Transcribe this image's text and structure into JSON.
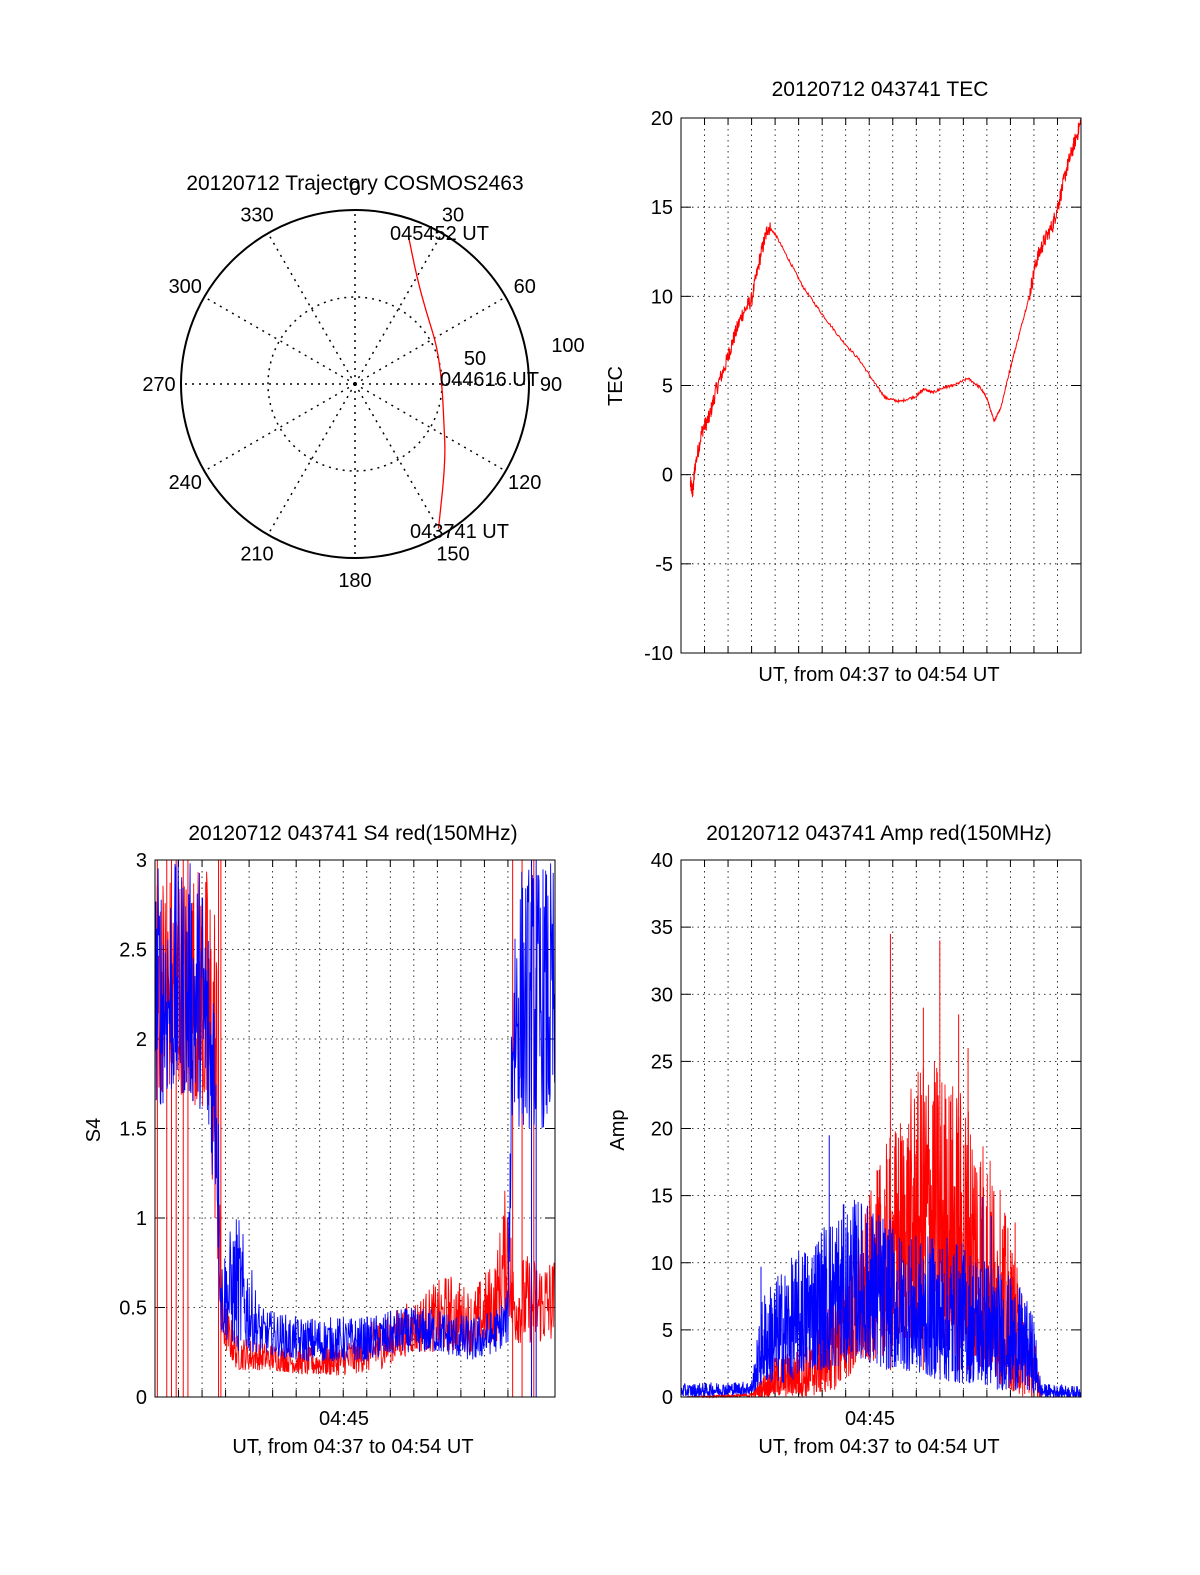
{
  "chart_data": [
    {
      "type": "polar",
      "title": "20120712 Trajectory COSMOS2463",
      "angle_labels": [
        "0",
        "30",
        "60",
        "90",
        "120",
        "150",
        "180",
        "210",
        "240",
        "270",
        "300",
        "330"
      ],
      "radius_labels": [
        "50",
        "100"
      ],
      "radius_range": [
        0,
        100
      ],
      "grid": true,
      "trajectory": {
        "color": "#ff0000",
        "points": [
          {
            "azimuth": 20,
            "radius": 90
          },
          {
            "azimuth": 30,
            "radius": 71
          },
          {
            "azimuth": 45,
            "radius": 58
          },
          {
            "azimuth": 65,
            "radius": 52
          },
          {
            "azimuth": 90,
            "radius": 50
          },
          {
            "azimuth": 112,
            "radius": 55
          },
          {
            "azimuth": 130,
            "radius": 68
          },
          {
            "azimuth": 150,
            "radius": 96
          }
        ]
      },
      "annotations": [
        "045452 UT",
        "044616 UT",
        "043741 UT"
      ]
    },
    {
      "type": "line",
      "title": "20120712 043741 TEC",
      "xlabel": "UT, from 04:37 to 04:54 UT",
      "ylabel": "TEC",
      "xlim": [
        0,
        17
      ],
      "ylim": [
        -10,
        20
      ],
      "yticks": [
        "-10",
        "-5",
        "0",
        "5",
        "10",
        "15",
        "20"
      ],
      "grid": true,
      "series": [
        {
          "color": "#ff0000",
          "points": [
            [
              0.4,
              -0.5
            ],
            [
              0.5,
              -1
            ],
            [
              0.6,
              0.5
            ],
            [
              0.9,
              2.5
            ],
            [
              1.2,
              3.2
            ],
            [
              1.5,
              4.8
            ],
            [
              1.9,
              6.2
            ],
            [
              2.2,
              7.5
            ],
            [
              2.6,
              9.0
            ],
            [
              3.0,
              9.8
            ],
            [
              3.4,
              12.4
            ],
            [
              3.7,
              13.9
            ],
            [
              4.0,
              13.5
            ],
            [
              4.6,
              12.0
            ],
            [
              5.2,
              10.5
            ],
            [
              6.0,
              9.0
            ],
            [
              6.8,
              7.6
            ],
            [
              7.6,
              6.4
            ],
            [
              8.3,
              5.0
            ],
            [
              8.7,
              4.3
            ],
            [
              9.3,
              4.1
            ],
            [
              10.0,
              4.4
            ],
            [
              10.3,
              4.8
            ],
            [
              10.7,
              4.6
            ],
            [
              11.2,
              4.9
            ],
            [
              11.6,
              5.0
            ],
            [
              12.2,
              5.4
            ],
            [
              12.7,
              4.9
            ],
            [
              13.0,
              4.3
            ],
            [
              13.3,
              3.0
            ],
            [
              13.6,
              3.8
            ],
            [
              14.0,
              6.0
            ],
            [
              14.4,
              8.0
            ],
            [
              14.8,
              10.0
            ],
            [
              15.1,
              12.0
            ],
            [
              15.4,
              13.0
            ],
            [
              15.8,
              14.0
            ],
            [
              16.1,
              15.5
            ],
            [
              16.4,
              17.2
            ],
            [
              16.7,
              18.5
            ],
            [
              17.0,
              19.8
            ]
          ]
        }
      ]
    },
    {
      "type": "line",
      "title": "20120712 043741 S4 red(150MHz)",
      "xlabel": "UT, from 04:37 to 04:54 UT",
      "ylabel": "S4",
      "xlim": [
        0,
        17
      ],
      "ylim": [
        0,
        3
      ],
      "xticks": [
        {
          "value": 8,
          "label": "04:45"
        }
      ],
      "yticks": [
        "0",
        "0.5",
        "1",
        "1.5",
        "2",
        "2.5",
        "3"
      ],
      "grid": true,
      "series": [
        {
          "color": "#ff0000",
          "envelope": [
            [
              0.0,
              1.7,
              3
            ],
            [
              1.0,
              1.7,
              3
            ],
            [
              2.0,
              1.6,
              3
            ],
            [
              2.6,
              0.9,
              3
            ],
            [
              2.8,
              0.3,
              0.6
            ],
            [
              3.5,
              0.15,
              0.35
            ],
            [
              5.0,
              0.15,
              0.3
            ],
            [
              6.5,
              0.12,
              0.28
            ],
            [
              8.0,
              0.12,
              0.3
            ],
            [
              9.5,
              0.15,
              0.45
            ],
            [
              11.0,
              0.25,
              0.55
            ],
            [
              12.5,
              0.25,
              0.7
            ],
            [
              13.5,
              0.25,
              0.6
            ],
            [
              14.5,
              0.3,
              0.8
            ],
            [
              15.0,
              0.5,
              1.3
            ],
            [
              15.2,
              0.3,
              0.8
            ]
          ],
          "spikes": [
            0.1,
            0.5,
            0.7,
            0.9,
            1.2,
            1.4,
            2.7,
            2.8,
            15.2,
            15.6,
            16.1
          ]
        },
        {
          "color": "#0000ff",
          "envelope": [
            [
              0.0,
              1.6,
              3
            ],
            [
              1.0,
              1.7,
              3
            ],
            [
              2.0,
              1.6,
              3
            ],
            [
              2.6,
              1.1,
              2.5
            ],
            [
              2.8,
              0.35,
              0.8
            ],
            [
              3.5,
              0.25,
              1.05
            ],
            [
              4.5,
              0.25,
              0.5
            ],
            [
              6.0,
              0.2,
              0.45
            ],
            [
              7.5,
              0.2,
              0.45
            ],
            [
              9.0,
              0.2,
              0.45
            ],
            [
              10.5,
              0.25,
              0.5
            ],
            [
              12.0,
              0.25,
              0.5
            ],
            [
              13.5,
              0.2,
              0.45
            ],
            [
              14.5,
              0.25,
              0.5
            ],
            [
              15.0,
              0.3,
              0.6
            ],
            [
              15.2,
              1.5,
              3
            ],
            [
              17.0,
              1.5,
              3
            ]
          ],
          "spikes": [
            16.0,
            16.2
          ]
        }
      ]
    },
    {
      "type": "line",
      "title": "20120712 043741 Amp red(150MHz)",
      "xlabel": "UT, from 04:37 to 04:54 UT",
      "ylabel": "Amp",
      "xlim": [
        0,
        17
      ],
      "ylim": [
        0,
        40
      ],
      "xticks": [
        {
          "value": 8,
          "label": "04:45"
        }
      ],
      "yticks": [
        "0",
        "5",
        "10",
        "15",
        "20",
        "25",
        "30",
        "35",
        "40"
      ],
      "grid": true,
      "series": [
        {
          "color": "#ff0000",
          "envelope": [
            [
              0.0,
              0,
              0
            ],
            [
              3.0,
              0,
              0.3
            ],
            [
              4.0,
              0,
              3
            ],
            [
              5.5,
              0,
              4
            ],
            [
              6.5,
              0.5,
              8
            ],
            [
              7.5,
              2,
              12
            ],
            [
              8.5,
              3,
              18
            ],
            [
              9.5,
              4,
              22
            ],
            [
              10.5,
              5,
              26
            ],
            [
              11.5,
              3,
              24
            ],
            [
              12.5,
              2,
              22
            ],
            [
              13.5,
              1,
              16
            ],
            [
              14.5,
              0,
              8
            ],
            [
              15.2,
              0,
              3
            ],
            [
              15.3,
              0,
              0
            ]
          ],
          "spikes": [
            [
              8.9,
              34.5
            ],
            [
              11.0,
              34
            ],
            [
              11.8,
              28.5
            ],
            [
              12.2,
              26
            ],
            [
              10.3,
              29
            ],
            [
              14.2,
              13
            ]
          ]
        },
        {
          "color": "#0000ff",
          "envelope": [
            [
              0.0,
              0,
              1
            ],
            [
              3.0,
              0.2,
              1.2
            ],
            [
              3.5,
              1,
              8
            ],
            [
              4.5,
              1,
              10
            ],
            [
              5.5,
              2,
              12
            ],
            [
              6.5,
              2,
              14
            ],
            [
              7.5,
              3,
              15
            ],
            [
              8.5,
              2,
              14
            ],
            [
              9.5,
              2,
              12
            ],
            [
              10.5,
              1.5,
              12
            ],
            [
              11.5,
              1,
              12
            ],
            [
              12.5,
              1,
              11
            ],
            [
              13.5,
              0.5,
              10
            ],
            [
              14.5,
              0.5,
              8
            ],
            [
              15.0,
              0.3,
              6
            ],
            [
              15.3,
              0,
              1
            ],
            [
              17.0,
              0,
              0.8
            ]
          ],
          "spikes": [
            [
              6.3,
              19.5
            ],
            [
              3.4,
              9.7
            ],
            [
              13.2,
              13.5
            ],
            [
              12.8,
              14.9
            ]
          ]
        }
      ]
    }
  ]
}
